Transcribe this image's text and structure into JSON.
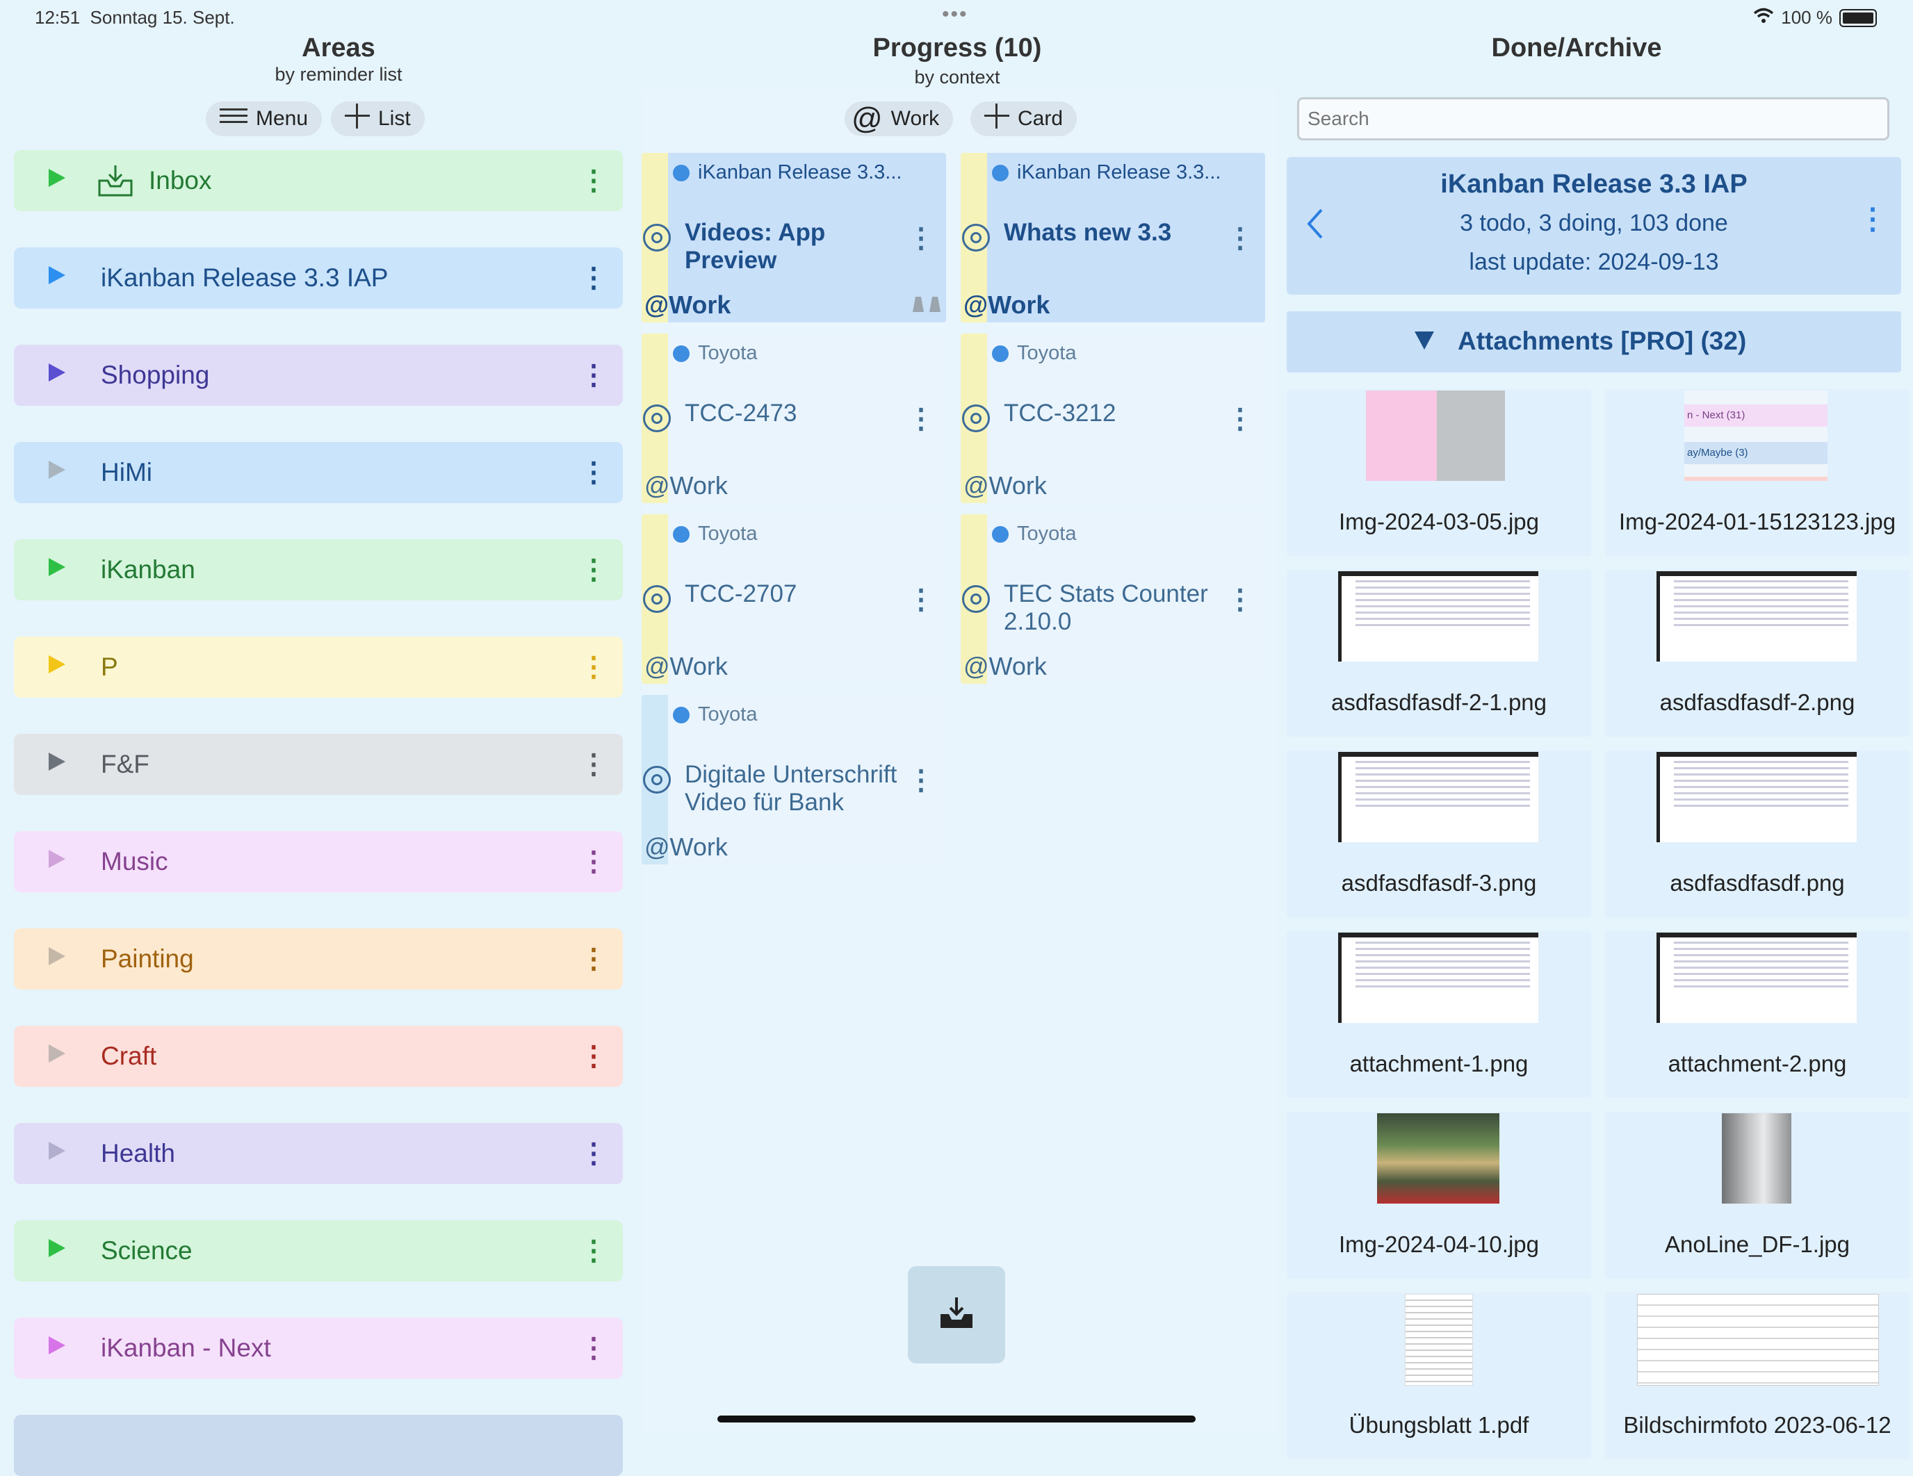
{
  "status_bar": {
    "time": "12:51",
    "date": "Sonntag 15. Sept.",
    "battery": "100 %"
  },
  "areas": {
    "title": "Areas",
    "subtitle": "by reminder list",
    "menu_label": "Menu",
    "add_list_label": "List",
    "items": [
      {
        "label": "Inbox",
        "bg": "#d5f5dc",
        "fg": "#237a33",
        "tri": "#2fbf44"
      },
      {
        "label": "iKanban Release 3.3 IAP",
        "bg": "#c9e4fb",
        "fg": "#1d4f8a",
        "tri": "#2d8ff0"
      },
      {
        "label": "Shopping",
        "bg": "#e0dcf7",
        "fg": "#3e3795",
        "tri": "#5a4ed1"
      },
      {
        "label": "HiMi",
        "bg": "#c9e4fb",
        "fg": "#1d4f8a",
        "tri": "#a8b4be"
      },
      {
        "label": "iKanban",
        "bg": "#d5f5dc",
        "fg": "#237a33",
        "tri": "#2fbf44"
      },
      {
        "label": "P",
        "bg": "#fcf7d2",
        "fg": "#8a7a10",
        "tri": "#f2c518"
      },
      {
        "label": "F&F",
        "bg": "#e2e5e8",
        "fg": "#555b61",
        "tri": "#6c737a"
      },
      {
        "label": "Music",
        "bg": "#f5e1fb",
        "fg": "#86428f",
        "tri": "#d0a3da"
      },
      {
        "label": "Painting",
        "bg": "#fde9cf",
        "fg": "#a0620f",
        "tri": "#c4b7a8"
      },
      {
        "label": "Craft",
        "bg": "#fde0db",
        "fg": "#a82c22",
        "tri": "#c2b6b3"
      },
      {
        "label": "Health",
        "bg": "#e0dcf7",
        "fg": "#3e3795",
        "tri": "#b2aecd"
      },
      {
        "label": "Science",
        "bg": "#d5f5dc",
        "fg": "#237a33",
        "tri": "#2fbf44"
      },
      {
        "label": "iKanban - Next",
        "bg": "#f5e1fb",
        "fg": "#86428f",
        "tri": "#d774e8"
      }
    ]
  },
  "progress": {
    "title": "Progress (10)",
    "subtitle": "by context",
    "context_label": "Work",
    "add_card_label": "Card",
    "cards": [
      {
        "list": "iKanban Release 3.3...",
        "title": "Videos: App Preview",
        "ctx": "@Work",
        "stripe": "#f6f3ba",
        "bg": "#c9e0f9",
        "bold": true
      },
      {
        "list": "iKanban Release 3.3...",
        "title": "Whats new 3.3",
        "ctx": "@Work",
        "stripe": "#f6f3ba",
        "bg": "#c9e0f9",
        "bold": true
      },
      {
        "list": "Toyota",
        "title": "TCC-2473",
        "ctx": "@Work",
        "stripe": "#f6f3ba",
        "bg": "#eaf4fd",
        "bold": false
      },
      {
        "list": "Toyota",
        "title": "TCC-3212",
        "ctx": "@Work",
        "stripe": "#f6f3ba",
        "bg": "#eaf4fd",
        "bold": false
      },
      {
        "list": "Toyota",
        "title": "TCC-2707",
        "ctx": "@Work",
        "stripe": "#f6f3ba",
        "bg": "#eaf4fd",
        "bold": false
      },
      {
        "list": "Toyota",
        "title": "TEC Stats Counter 2.10.0",
        "ctx": "@Work",
        "stripe": "#f6f3ba",
        "bg": "#eaf4fd",
        "bold": false
      },
      {
        "list": "Toyota",
        "title": "Digitale Unterschrift Video für Bank",
        "ctx": "@Work",
        "stripe": "#cfe8f8",
        "bg": "#eaf4fd",
        "bold": false
      }
    ]
  },
  "done": {
    "title": "Done/Archive",
    "search_placeholder": "Search",
    "detail_title": "iKanban Release 3.3 IAP",
    "detail_counts": "3 todo, 3 doing, 103 done",
    "detail_update": "last update: 2024-09-13",
    "attachments_label": "Attachments [PRO] (32)",
    "attachments": [
      {
        "name": "Img-2024-03-05.jpg",
        "kind": "color"
      },
      {
        "name": "Img-2024-01-15123123.jpg",
        "kind": "list",
        "line1": "n - Next (31)",
        "line2": "ay/Maybe (3)"
      },
      {
        "name": "asdfasdfasdf-2-1.png",
        "kind": "shot"
      },
      {
        "name": "asdfasdfasdf-2.png",
        "kind": "shot"
      },
      {
        "name": "asdfasdfasdf-3.png",
        "kind": "shot"
      },
      {
        "name": "asdfasdfasdf.png",
        "kind": "shot"
      },
      {
        "name": "attachment-1.png",
        "kind": "shot"
      },
      {
        "name": "attachment-2.png",
        "kind": "shot"
      },
      {
        "name": "Img-2024-04-10.jpg",
        "kind": "photo"
      },
      {
        "name": "AnoLine_DF-1.jpg",
        "kind": "metal"
      },
      {
        "name": "Übungsblatt 1.pdf",
        "kind": "doc"
      },
      {
        "name": "Bildschirmfoto 2023-06-12",
        "kind": "table"
      }
    ]
  }
}
